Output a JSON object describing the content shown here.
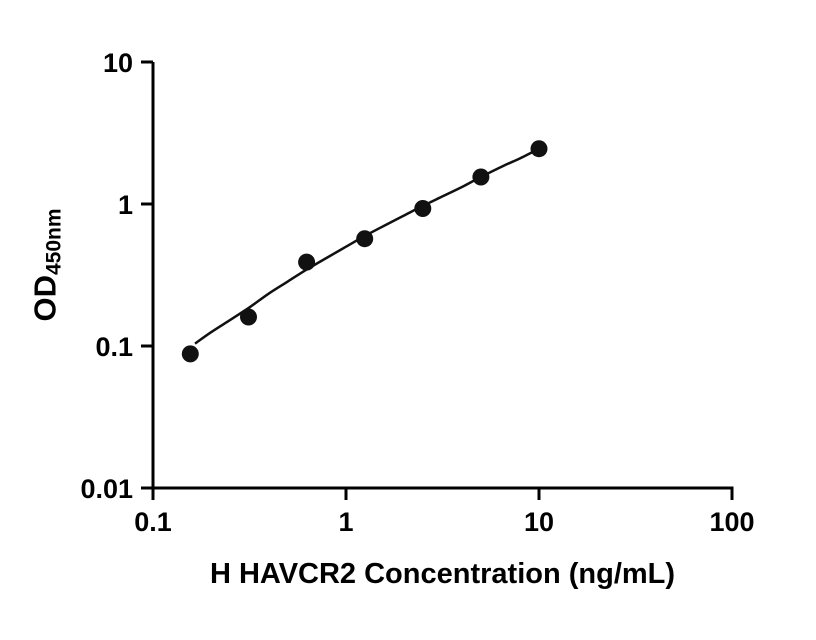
{
  "chart_data": {
    "type": "scatter",
    "title": "",
    "xlabel": "H HAVCR2 Concentration (ng/mL)",
    "ylabel": "OD450nm",
    "ylabel_main": "OD",
    "ylabel_sub": "450nm",
    "xscale": "log",
    "yscale": "log",
    "xlim": [
      0.1,
      100
    ],
    "ylim": [
      0.01,
      10
    ],
    "grid": false,
    "legend": false,
    "axis_color": "#000000",
    "marker_color": "#111111",
    "line_color": "#111111",
    "x_ticks": [
      {
        "value": 0.1,
        "label": "0.1"
      },
      {
        "value": 1,
        "label": "1"
      },
      {
        "value": 10,
        "label": "10"
      },
      {
        "value": 100,
        "label": "100"
      }
    ],
    "y_ticks": [
      {
        "value": 10,
        "label": "10"
      },
      {
        "value": 1,
        "label": "1"
      },
      {
        "value": 0.1,
        "label": "0.1"
      },
      {
        "value": 0.01,
        "label": "0.01"
      }
    ],
    "points": [
      {
        "x": 0.156,
        "y": 0.088
      },
      {
        "x": 0.3125,
        "y": 0.16
      },
      {
        "x": 0.625,
        "y": 0.39
      },
      {
        "x": 1.25,
        "y": 0.57
      },
      {
        "x": 2.5,
        "y": 0.93
      },
      {
        "x": 5,
        "y": 1.55
      },
      {
        "x": 10,
        "y": 2.45
      }
    ],
    "fit_curve": [
      {
        "x": 0.165,
        "y": 0.104
      },
      {
        "x": 0.2,
        "y": 0.125
      },
      {
        "x": 0.25,
        "y": 0.152
      },
      {
        "x": 0.3125,
        "y": 0.185
      },
      {
        "x": 0.4,
        "y": 0.235
      },
      {
        "x": 0.5,
        "y": 0.285
      },
      {
        "x": 0.625,
        "y": 0.345
      },
      {
        "x": 0.8,
        "y": 0.42
      },
      {
        "x": 1.0,
        "y": 0.5
      },
      {
        "x": 1.25,
        "y": 0.595
      },
      {
        "x": 1.6,
        "y": 0.71
      },
      {
        "x": 2.0,
        "y": 0.83
      },
      {
        "x": 2.5,
        "y": 0.97
      },
      {
        "x": 3.2,
        "y": 1.14
      },
      {
        "x": 4.0,
        "y": 1.32
      },
      {
        "x": 5.0,
        "y": 1.55
      },
      {
        "x": 6.5,
        "y": 1.85
      },
      {
        "x": 8.0,
        "y": 2.1
      },
      {
        "x": 10.0,
        "y": 2.45
      }
    ]
  }
}
